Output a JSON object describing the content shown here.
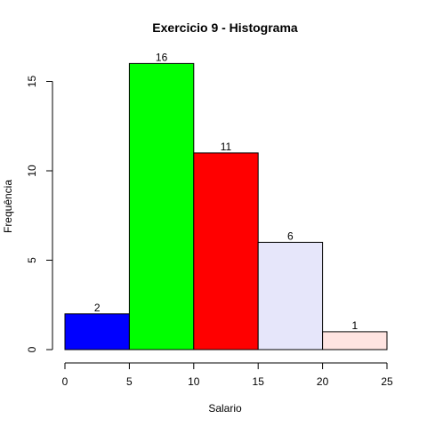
{
  "chart_data": {
    "type": "bar",
    "title": "Exercicio 9 - Histograma",
    "xlabel": "Salario",
    "ylabel": "Frequência",
    "bins": [
      {
        "from": 0,
        "to": 5,
        "value": 2,
        "label": "2",
        "color": "#0000FF"
      },
      {
        "from": 5,
        "to": 10,
        "value": 16,
        "label": "16",
        "color": "#00FF00"
      },
      {
        "from": 10,
        "to": 15,
        "value": 11,
        "label": "11",
        "color": "#FF0000"
      },
      {
        "from": 15,
        "to": 20,
        "value": 6,
        "label": "6",
        "color": "#E6E6FA"
      },
      {
        "from": 20,
        "to": 25,
        "value": 1,
        "label": "1",
        "color": "#FFE4E1"
      }
    ],
    "xlim": [
      0,
      25
    ],
    "ylim": [
      0,
      16
    ],
    "xticks": [
      0,
      5,
      10,
      15,
      20,
      25
    ],
    "xtick_labels": [
      "0",
      "5",
      "10",
      "15",
      "20",
      "25"
    ],
    "yticks": [
      0,
      5,
      10,
      15
    ],
    "ytick_labels": [
      "0",
      "5",
      "10",
      "15"
    ],
    "grid": false
  }
}
